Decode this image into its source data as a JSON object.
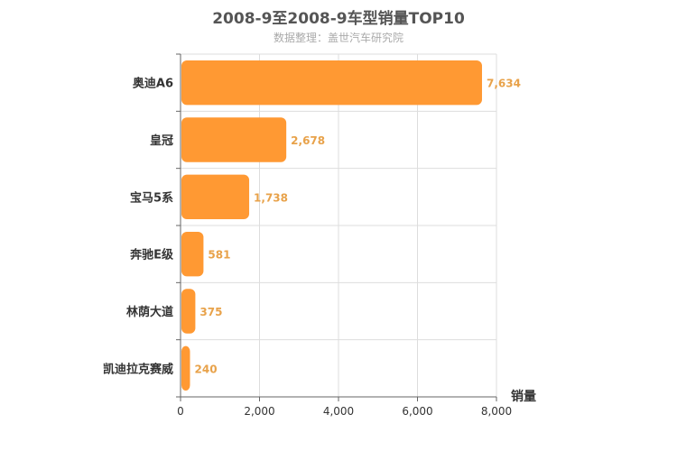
{
  "chart_data": {
    "type": "bar",
    "orientation": "horizontal",
    "title": "2008-9至2008-9车型销量TOP10",
    "subtitle": "数据整理：盖世汽车研究院",
    "categories": [
      "奥迪A6",
      "皇冠",
      "宝马5系",
      "奔驰E级",
      "林荫大道",
      "凯迪拉克赛威"
    ],
    "values": [
      7634,
      2678,
      1738,
      581,
      375,
      240
    ],
    "value_labels": [
      "7,634",
      "2,678",
      "1,738",
      "581",
      "375",
      "240"
    ],
    "xlabel": "销量",
    "ylabel": "",
    "xlim": [
      0,
      8000
    ],
    "x_ticks": [
      0,
      2000,
      4000,
      6000,
      8000
    ],
    "x_tick_labels": [
      "0",
      "2,000",
      "4,000",
      "6,000",
      "8,000"
    ],
    "grid": true,
    "bar_color": "#ff9933",
    "label_color": "#e8a24a"
  }
}
